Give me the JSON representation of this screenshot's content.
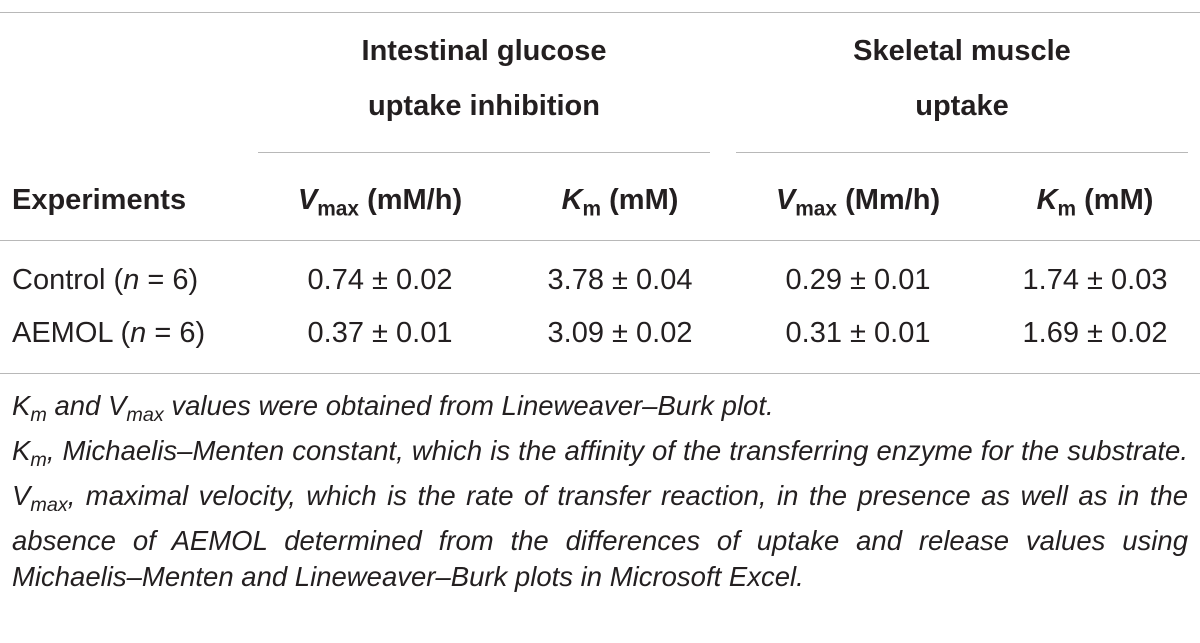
{
  "table": {
    "group_headers": [
      [
        "Intestinal glucose",
        "uptake inhibition"
      ],
      [
        "Skeletal muscle",
        "uptake"
      ]
    ],
    "columns": [
      [
        {
          "text": "Experiments"
        }
      ],
      [
        {
          "italic": "V"
        },
        {
          "sub": "max"
        },
        {
          "text": " (mM/h)"
        }
      ],
      [
        {
          "italic": "K"
        },
        {
          "sub": "m"
        },
        {
          "text": " (mM)"
        }
      ],
      [
        {
          "italic": "V"
        },
        {
          "sub": "max"
        },
        {
          "text": " (Mm/h)"
        }
      ],
      [
        {
          "italic": "K"
        },
        {
          "sub": "m"
        },
        {
          "text": " (mM)"
        }
      ]
    ],
    "rows": [
      [
        [
          {
            "text": "Control ("
          },
          {
            "italic": "n"
          },
          {
            "text": " = 6)"
          }
        ],
        "0.74 ± 0.02",
        "3.78 ± 0.04",
        "0.29 ± 0.01",
        "1.74 ± 0.03"
      ],
      [
        [
          {
            "text": "AEMOL ("
          },
          {
            "italic": "n"
          },
          {
            "text": " = 6)"
          }
        ],
        "0.37 ± 0.01",
        "3.09 ± 0.02",
        "0.31 ± 0.01",
        "1.69 ± 0.02"
      ]
    ]
  },
  "footnotes": [
    [
      {
        "text": "K"
      },
      {
        "sub": "m"
      },
      {
        "text": " and V"
      },
      {
        "sub": "max"
      },
      {
        "text": " values were obtained from Lineweaver–Burk plot."
      }
    ],
    [
      {
        "text": "K"
      },
      {
        "sub": "m"
      },
      {
        "text": ", Michaelis–Menten constant, which is the affinity of the transferring enzyme for the substrate. V"
      },
      {
        "sub": "max"
      },
      {
        "text": ", maximal velocity, which is the rate of transfer reaction, in the presence as well as in the absence of AEMOL determined from the differences of uptake and release values using Michaelis–Menten and Lineweaver–Burk plots in Microsoft Excel."
      }
    ]
  ]
}
